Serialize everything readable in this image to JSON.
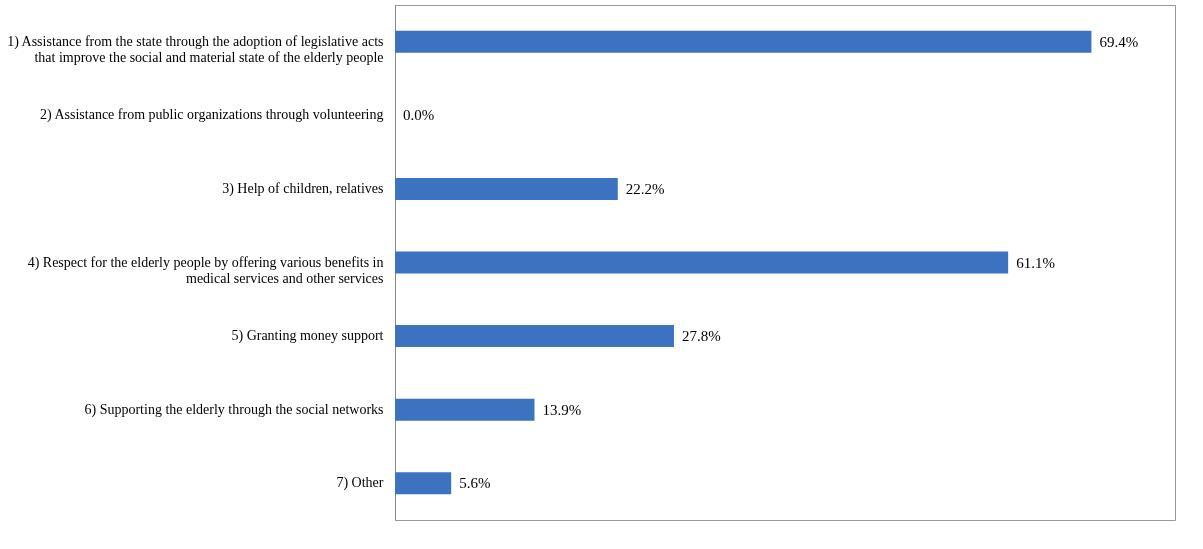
{
  "chart_data": {
    "type": "bar",
    "orientation": "horizontal",
    "categories": [
      "1) Assistance from the state through the adoption of legislative acts that improve the social and material state of the elderly people",
      "2) Assistance from public organizations through volunteering",
      "3) Help of children, relatives",
      "4) Respect for the elderly people by offering various benefits in medical services and other services",
      "5) Granting money support",
      "6) Supporting the elderly through the social networks",
      "7) Other"
    ],
    "values": [
      69.4,
      0.0,
      22.2,
      61.1,
      27.8,
      13.9,
      5.6
    ],
    "value_labels": [
      "69.4%",
      "0.0%",
      "22.2%",
      "61.1%",
      "27.8%",
      "13.9%",
      "5.6%"
    ],
    "color": "#3c72c0",
    "grid": false
  }
}
